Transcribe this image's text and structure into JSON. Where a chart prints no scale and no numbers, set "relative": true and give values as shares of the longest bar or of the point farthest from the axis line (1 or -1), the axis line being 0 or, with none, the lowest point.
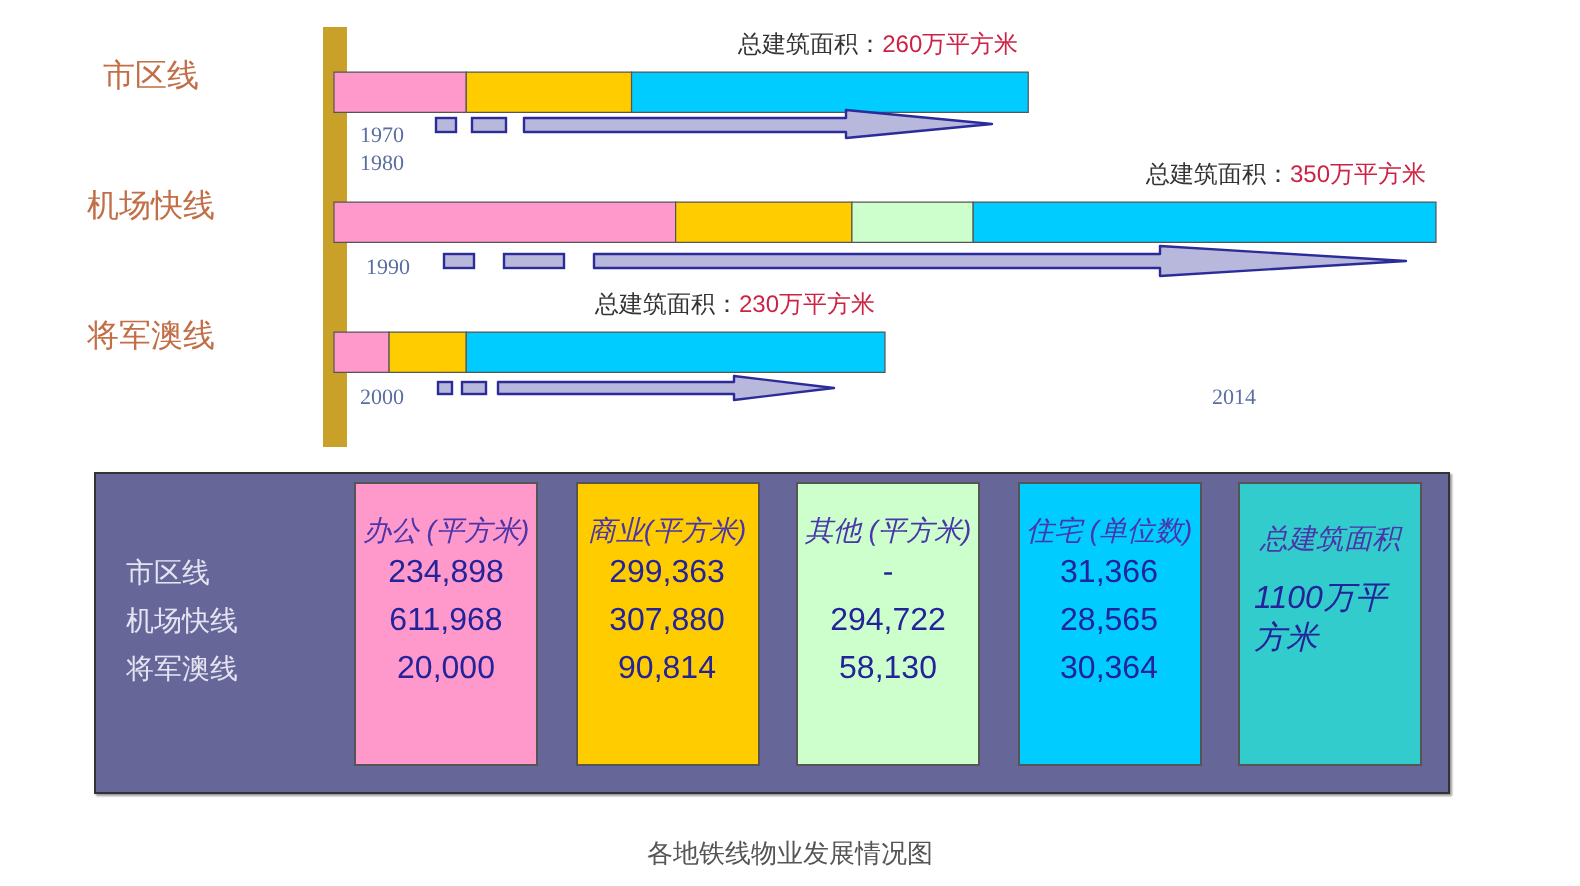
{
  "chart_data": [
    {
      "type": "bar",
      "orientation": "horizontal",
      "stacked": true,
      "relative": true,
      "categories": [
        "市区线",
        "机场快线",
        "将军澳线"
      ],
      "series": [
        {
          "color": "#ff99cc",
          "values": [
            0.12,
            0.31,
            0.05
          ]
        },
        {
          "color": "#ffcc00",
          "values": [
            0.15,
            0.16,
            0.07
          ]
        },
        {
          "color": "#ccffcc",
          "values": [
            null,
            0.11,
            null
          ]
        },
        {
          "color": "#00ccff",
          "values": [
            0.36,
            0.42,
            0.38
          ]
        }
      ],
      "annotations": [
        {
          "text": "总建筑面积：260万平方米",
          "x": 0.63,
          "y": "市区线"
        },
        {
          "text": "总建筑面积：350万平方米",
          "x": 1.0,
          "y": "机场快线"
        },
        {
          "text": "总建筑面积：230万平方米",
          "x": 0.5,
          "y": "将军澳线"
        },
        "1970",
        "1980",
        "1990",
        "2000",
        "2014"
      ]
    },
    {
      "type": "other",
      "title": "各地铁线物业发展情况图",
      "categories": [
        "办公 (平方米)",
        "商业(平方米)",
        "其他 (平方米)",
        "住宅 (单位数)",
        "总建筑面积"
      ],
      "y_categories": [
        "市区线",
        "机场快线",
        "将军澳线"
      ],
      "cell_labels": [
        [
          "234,898",
          "299,363",
          "-",
          "31,366"
        ],
        [
          "611,968",
          "307,880",
          "294,722",
          "28,565"
        ],
        [
          "20,000",
          "90,814",
          "58,130",
          "30,364"
        ]
      ],
      "colors": [
        "#ff99cc",
        "#ffcc00",
        "#ccffcc",
        "#00ccff",
        "#33cccc"
      ],
      "annotations": [
        "1100万平方米"
      ]
    }
  ]
}
